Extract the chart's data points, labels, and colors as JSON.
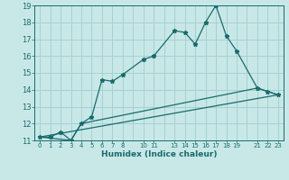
{
  "title": "",
  "xlabel": "Humidex (Indice chaleur)",
  "bg_color": "#c8e8e8",
  "grid_color": "#a8d0d0",
  "line_color": "#1a6b6b",
  "ylim": [
    11,
    19
  ],
  "xlim": [
    -0.5,
    23.5
  ],
  "yticks": [
    11,
    12,
    13,
    14,
    15,
    16,
    17,
    18,
    19
  ],
  "xtick_positions": [
    0,
    1,
    2,
    3,
    4,
    5,
    6,
    7,
    8,
    10,
    11,
    13,
    14,
    15,
    16,
    17,
    18,
    19,
    21,
    22,
    23
  ],
  "xtick_labels": [
    "0",
    "1",
    "2",
    "3",
    "4",
    "5",
    "6",
    "7",
    "8",
    "10",
    "11",
    "13",
    "14",
    "15",
    "16",
    "17",
    "18",
    "19",
    "21",
    "22",
    "23"
  ],
  "line1_x": [
    0,
    1,
    2,
    3,
    4,
    5,
    6,
    7,
    8,
    10,
    11,
    13,
    14,
    15,
    16,
    17,
    18,
    19,
    21,
    22,
    23
  ],
  "line1_y": [
    11.2,
    11.2,
    11.5,
    11.0,
    12.0,
    12.4,
    14.6,
    14.5,
    14.9,
    15.8,
    16.0,
    17.5,
    17.4,
    16.7,
    18.0,
    19.0,
    17.2,
    16.3,
    14.1,
    13.9,
    13.7
  ],
  "line2_x": [
    0,
    3,
    4,
    21,
    22,
    23
  ],
  "line2_y": [
    11.2,
    11.0,
    12.0,
    14.1,
    13.9,
    13.7
  ],
  "line3_x": [
    0,
    23
  ],
  "line3_y": [
    11.2,
    13.7
  ]
}
